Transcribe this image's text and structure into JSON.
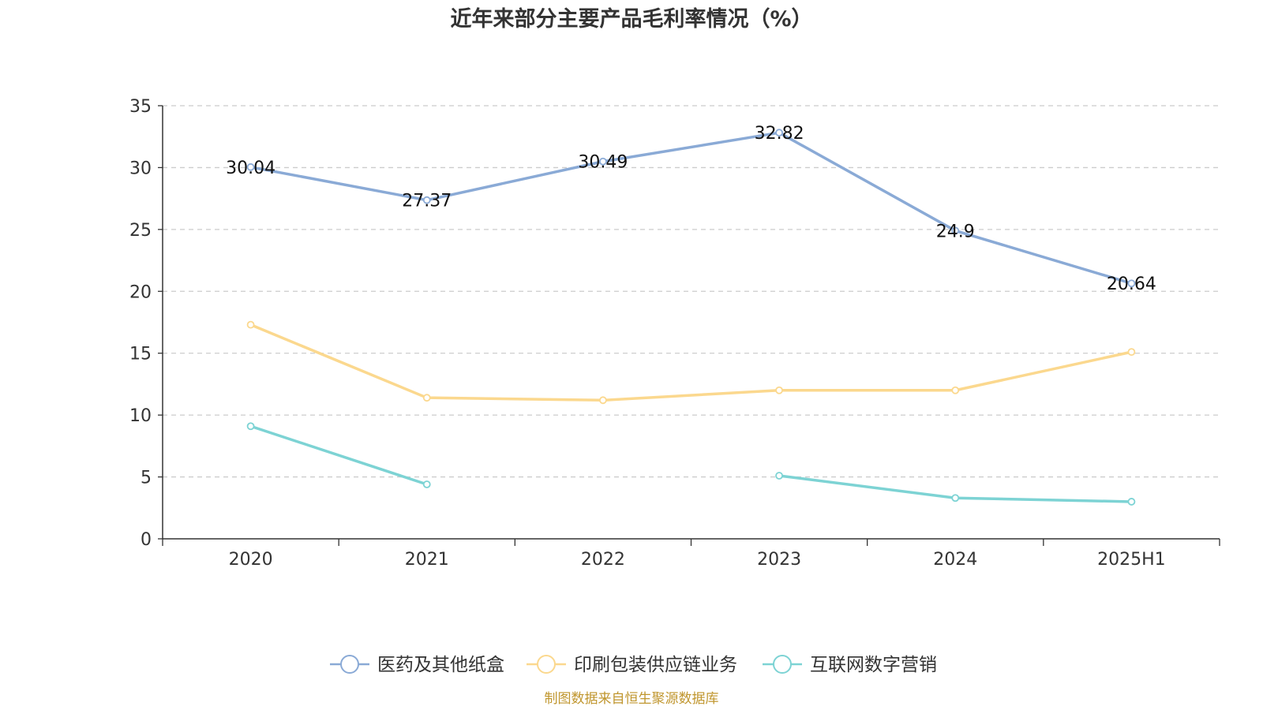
{
  "chart_data": {
    "type": "line",
    "title": "近年来部分主要产品毛利率情况（%）",
    "categories": [
      "2020",
      "2021",
      "2022",
      "2023",
      "2024",
      "2025H1"
    ],
    "ylim": [
      0,
      35
    ],
    "yticks": [
      0,
      5,
      10,
      15,
      20,
      25,
      30,
      35
    ],
    "grid": true,
    "legend_position": "bottom",
    "series": [
      {
        "name": "医药及其他纸盒",
        "color": "#8aaad6",
        "values": [
          30.04,
          27.37,
          30.49,
          32.82,
          24.9,
          20.64
        ],
        "labels": [
          "30.04",
          "27.37",
          "30.49",
          "32.82",
          "24.9",
          "20.64"
        ]
      },
      {
        "name": "印刷包装供应链业务",
        "color": "#fbd88e",
        "values": [
          17.3,
          11.4,
          11.2,
          12.0,
          12.0,
          15.1
        ]
      },
      {
        "name": "互联网数字营销",
        "color": "#7dd3d4",
        "values": [
          9.1,
          4.4,
          null,
          5.1,
          3.3,
          3.0
        ]
      }
    ],
    "source": "制图数据来自恒生聚源数据库"
  }
}
